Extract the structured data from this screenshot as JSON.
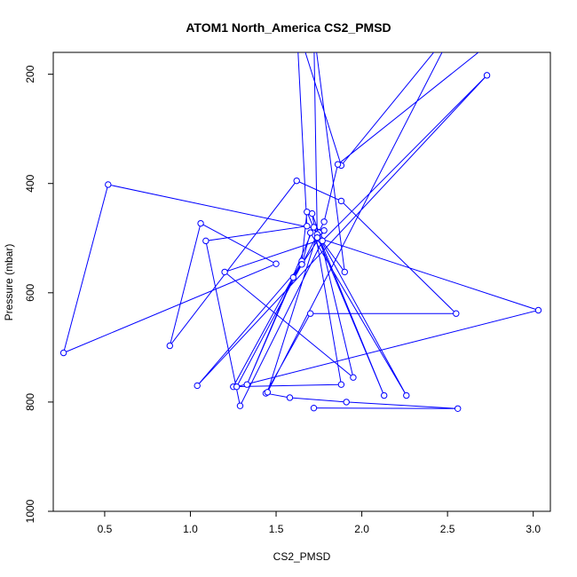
{
  "chart_data": {
    "type": "line",
    "title": "ATOM1 North_America CS2_PMSD",
    "xlabel": "CS2_PMSD",
    "ylabel": "Pressure (mbar)",
    "xlim": [
      0.2,
      3.1
    ],
    "ylim": [
      1000,
      160
    ],
    "y_reversed": true,
    "grid": false,
    "line_color": "#0000ff",
    "x_ticks": [
      0.5,
      1.0,
      1.5,
      2.0,
      2.5,
      3.0
    ],
    "x_tick_labels": [
      "0.5",
      "1.0",
      "1.5",
      "2.0",
      "2.5",
      "3.0"
    ],
    "y_ticks": [
      200,
      400,
      600,
      800,
      1000
    ],
    "y_tick_labels": [
      "200",
      "400",
      "600",
      "800",
      "1000"
    ],
    "series": [
      {
        "points": [
          [
            1.72,
            811
          ],
          [
            2.56,
            812
          ],
          [
            1.91,
            800
          ],
          [
            1.58,
            792
          ],
          [
            1.44,
            784
          ],
          [
            1.7,
            638
          ],
          [
            2.55,
            638
          ],
          [
            1.88,
            432
          ],
          [
            1.62,
            395
          ],
          [
            0.88,
            697
          ],
          [
            1.06,
            473
          ],
          [
            1.5,
            547
          ],
          [
            0.26,
            710
          ],
          [
            0.52,
            402
          ],
          [
            1.78,
            486
          ],
          [
            1.6,
            572
          ],
          [
            1.33,
            768
          ],
          [
            1.72,
            480
          ],
          [
            1.75,
            498
          ],
          [
            2.13,
            788
          ],
          [
            1.68,
            452
          ],
          [
            1.65,
            542
          ],
          [
            1.25,
            772
          ],
          [
            1.88,
            768
          ],
          [
            1.71,
            455
          ],
          [
            1.75,
            490
          ],
          [
            1.95,
            755
          ],
          [
            1.2,
            562
          ],
          [
            1.76,
            503
          ],
          [
            2.26,
            788
          ],
          [
            1.7,
            490
          ],
          [
            1.65,
            548
          ],
          [
            1.04,
            770
          ],
          [
            2.73,
            202
          ],
          [
            1.77,
            505
          ],
          [
            1.29,
            807
          ],
          [
            1.09,
            505
          ],
          [
            1.68,
            478
          ],
          [
            1.62,
            110
          ],
          [
            1.88,
            367
          ],
          [
            2.55,
            110
          ],
          [
            1.45,
            782
          ],
          [
            1.74,
            493
          ],
          [
            1.9,
            562
          ],
          [
            1.72,
            120
          ],
          [
            1.74,
            499
          ],
          [
            3.03,
            632
          ],
          [
            1.27,
            772
          ],
          [
            1.65,
            548
          ],
          [
            1.78,
            470
          ],
          [
            1.86,
            365
          ],
          [
            2.8,
            130
          ]
        ]
      }
    ]
  }
}
